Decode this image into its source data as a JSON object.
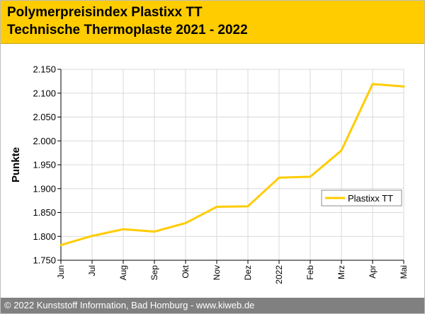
{
  "header": {
    "title_line1": "Polymerpreisindex Plastixx TT",
    "title_line2": "Technische Thermoplaste 2021 - 2022"
  },
  "footer": {
    "copyright": "© 2022 Kunststoff Information, Bad Homburg - www.kiweb.de"
  },
  "colors": {
    "header_bg": "#ffcc00",
    "series_line": "#ffcc00",
    "footer_bg": "#808080",
    "grid": "#d9d9d9"
  },
  "chart_data": {
    "type": "line",
    "title": "Polymerpreisindex Plastixx TT",
    "subtitle": "Technische Thermoplaste 2021 - 2022",
    "ylabel": "Punkte",
    "xlabel": "",
    "categories": [
      "Jun",
      "Jul",
      "Aug",
      "Sep",
      "Okt",
      "Nov",
      "Dez",
      "2022",
      "Feb",
      "Mrz",
      "Apr",
      "Mai"
    ],
    "series": [
      {
        "name": "Plastixx TT",
        "color": "#ffcc00",
        "values": [
          1782,
          1801,
          1815,
          1810,
          1828,
          1862,
          1863,
          1923,
          1925,
          1980,
          2119,
          2114
        ]
      }
    ],
    "ylim": [
      1750,
      2150
    ],
    "yticks": [
      1750,
      1800,
      1850,
      1900,
      1950,
      2000,
      2050,
      2100,
      2150
    ],
    "ytick_labels": [
      "1.750",
      "1.800",
      "1.850",
      "1.900",
      "1.950",
      "2.000",
      "2.050",
      "2.100",
      "2.150"
    ],
    "grid": true,
    "legend": {
      "position": "right",
      "entries": [
        "Plastixx TT"
      ]
    }
  }
}
